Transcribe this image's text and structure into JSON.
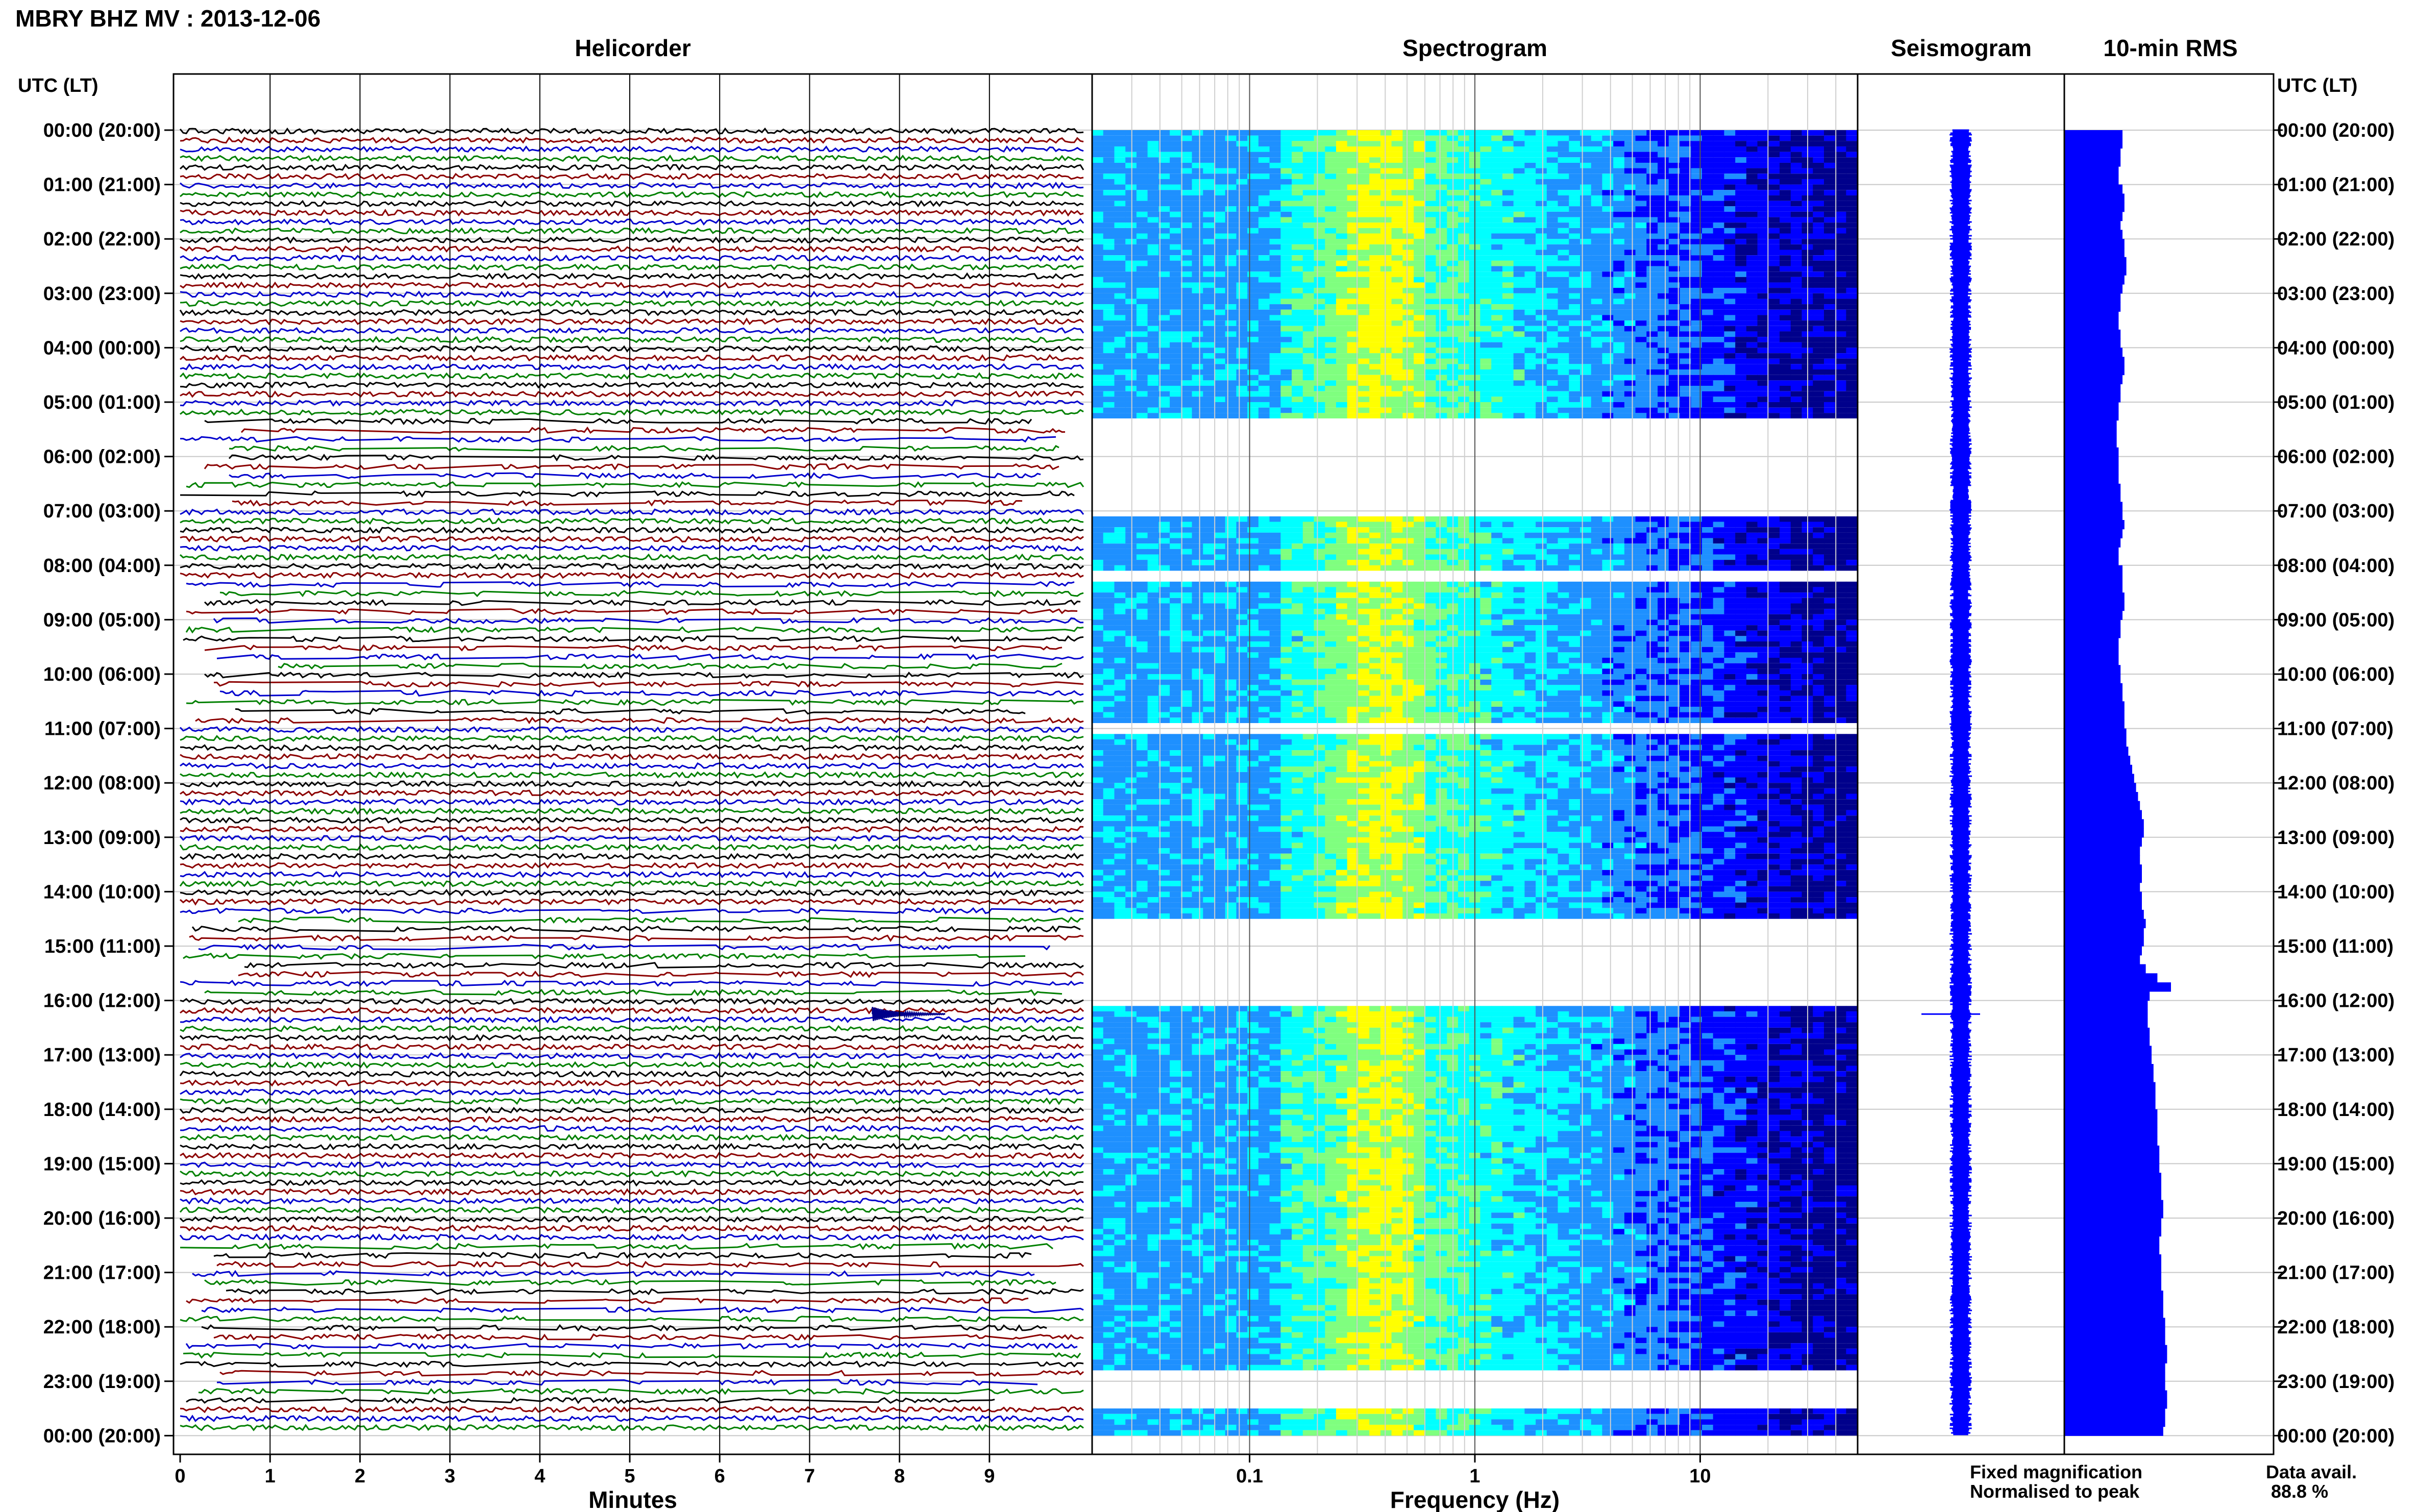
{
  "header": {
    "title": "MBRY BHZ MV : 2013-12-06"
  },
  "panels": {
    "helicorder": "Helicorder",
    "spectrogram": "Spectrogram",
    "seismogram": "Seismogram",
    "rms": "10-min RMS"
  },
  "axes": {
    "time_label": "UTC (LT)",
    "minutes_label": "Minutes",
    "frequency_label": "Frequency (Hz)"
  },
  "legend": {
    "fixed": "Fixed magnification",
    "normalised": "Normalised to peak",
    "fixed_color": "#0000ff",
    "normalised_color": "#ff0000"
  },
  "data_avail": {
    "label": "Data avail.",
    "value": "88.8 %"
  },
  "chart_data": {
    "type": "heatmap",
    "station": "MBRY",
    "channel": "BHZ",
    "network": "MV",
    "date": "2013-12-06",
    "time_ticks": [
      "00:00 (20:00)",
      "01:00 (21:00)",
      "02:00 (22:00)",
      "03:00 (23:00)",
      "04:00 (00:00)",
      "05:00 (01:00)",
      "06:00 (02:00)",
      "07:00 (03:00)",
      "08:00 (04:00)",
      "09:00 (05:00)",
      "10:00 (06:00)",
      "11:00 (07:00)",
      "12:00 (08:00)",
      "13:00 (09:00)",
      "14:00 (10:00)",
      "15:00 (11:00)",
      "16:00 (12:00)",
      "17:00 (13:00)",
      "18:00 (14:00)",
      "19:00 (15:00)",
      "20:00 (16:00)",
      "21:00 (17:00)",
      "22:00 (18:00)",
      "23:00 (19:00)",
      "00:00 (20:00)"
    ],
    "helicorder": {
      "x_ticks": [
        "0",
        "1",
        "2",
        "3",
        "4",
        "5",
        "6",
        "7",
        "8",
        "9"
      ],
      "xlim": [
        0,
        10
      ],
      "line_minutes": 10,
      "trace_colors": [
        "#000000",
        "#8b0000",
        "#0000cd",
        "#008000"
      ],
      "gap_hours": [
        [
          5.3,
          7.0
        ],
        [
          8.3,
          11.0
        ],
        [
          14.3,
          16.0
        ],
        [
          20.5,
          23.5
        ]
      ],
      "event": {
        "hour": 16.25,
        "minute": 7.7
      }
    },
    "spectrogram": {
      "x_ticks": [
        "0.1",
        "1",
        "10"
      ],
      "x_tick_values": [
        0.1,
        1,
        10
      ],
      "xlim": [
        0.02,
        50
      ],
      "scale": "log",
      "colormap": [
        "#00008b",
        "#0000ff",
        "#1e90ff",
        "#00ffff",
        "#7fff7f",
        "#ffff00"
      ],
      "gap_hours": [
        [
          5.2,
          7.0
        ],
        [
          8.0,
          8.2
        ],
        [
          10.8,
          11.0
        ],
        [
          14.4,
          16.0
        ],
        [
          22.8,
          23.5
        ]
      ]
    },
    "rms": {
      "color": "#0000ff",
      "values": [
        30,
        30,
        29,
        29,
        28,
        28,
        30,
        31,
        31,
        30,
        29,
        30,
        31,
        31,
        32,
        32,
        31,
        30,
        29,
        29,
        28,
        28,
        29,
        29,
        30,
        31,
        31,
        30,
        29,
        29,
        28,
        28,
        27,
        27,
        27,
        28,
        28,
        28,
        28,
        29,
        29,
        30,
        30,
        31,
        30,
        29,
        28,
        28,
        30,
        30,
        30,
        31,
        31,
        30,
        29,
        29,
        28,
        28,
        28,
        29,
        29,
        30,
        30,
        31,
        31,
        31,
        32,
        32,
        33,
        34,
        35,
        36,
        37,
        38,
        39,
        40,
        41,
        41,
        40,
        39,
        39,
        40,
        40,
        39,
        40,
        40,
        41,
        42,
        41,
        41,
        40,
        39,
        42,
        48,
        55,
        44,
        43,
        43,
        43,
        44,
        44,
        45,
        45,
        46,
        46,
        47,
        47,
        47,
        48,
        48,
        48,
        48,
        49,
        49,
        49,
        50,
        50,
        50,
        51,
        51,
        50,
        50,
        49,
        49,
        50,
        50,
        50,
        50,
        51,
        51,
        51,
        52,
        52,
        52,
        53,
        53,
        52,
        52,
        52,
        53,
        53,
        52,
        52,
        51
      ]
    }
  }
}
